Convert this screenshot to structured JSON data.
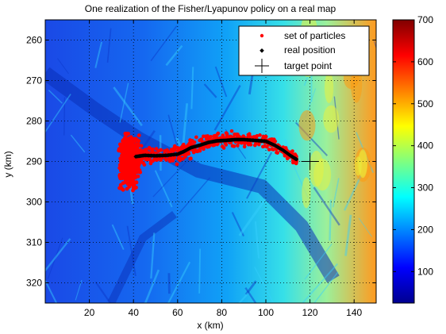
{
  "chart_data": {
    "type": "heatmap",
    "title": "One realization of the Fisher/Lyapunov policy on a real map",
    "xlabel": "x (km)",
    "ylabel": "y (km)",
    "xlim": [
      0,
      150
    ],
    "ylim": [
      325,
      255
    ],
    "y_axis_reversed": true,
    "xticks": [
      20,
      40,
      60,
      80,
      100,
      120,
      140
    ],
    "yticks": [
      260,
      270,
      280,
      290,
      300,
      310,
      320
    ],
    "grid": true,
    "grid_style": "dotted",
    "legend_placement": "top-right",
    "legend": [
      {
        "label": "set of particles",
        "marker": "dot",
        "color": "#ff0000"
      },
      {
        "label": "real position",
        "marker": "diamond",
        "color": "#000000"
      },
      {
        "label": "target point",
        "marker": "plus",
        "color": "#000000"
      }
    ],
    "colorbar": {
      "colormap": "jet",
      "min": 25,
      "max": 700,
      "ticks": [
        100,
        200,
        300,
        400,
        500,
        600,
        700
      ]
    },
    "target_point": {
      "x": 120,
      "y": 290
    },
    "particle_cloud": {
      "x_range": [
        29,
        115
      ],
      "y_range": [
        279,
        300.5
      ],
      "center": {
        "x": 38,
        "y": 290
      }
    },
    "trajectory": {
      "x": [
        41,
        45,
        50,
        55,
        60,
        63,
        66,
        70,
        74,
        78,
        82,
        86,
        90,
        95,
        100,
        104,
        108,
        111,
        113,
        114
      ],
      "y": [
        288.8,
        288.5,
        288.6,
        288.5,
        288.2,
        287.5,
        286.6,
        286.0,
        285.3,
        284.9,
        284.8,
        284.6,
        284.6,
        284.8,
        285.0,
        286.0,
        287.3,
        288.5,
        289.2,
        289.5
      ]
    }
  }
}
